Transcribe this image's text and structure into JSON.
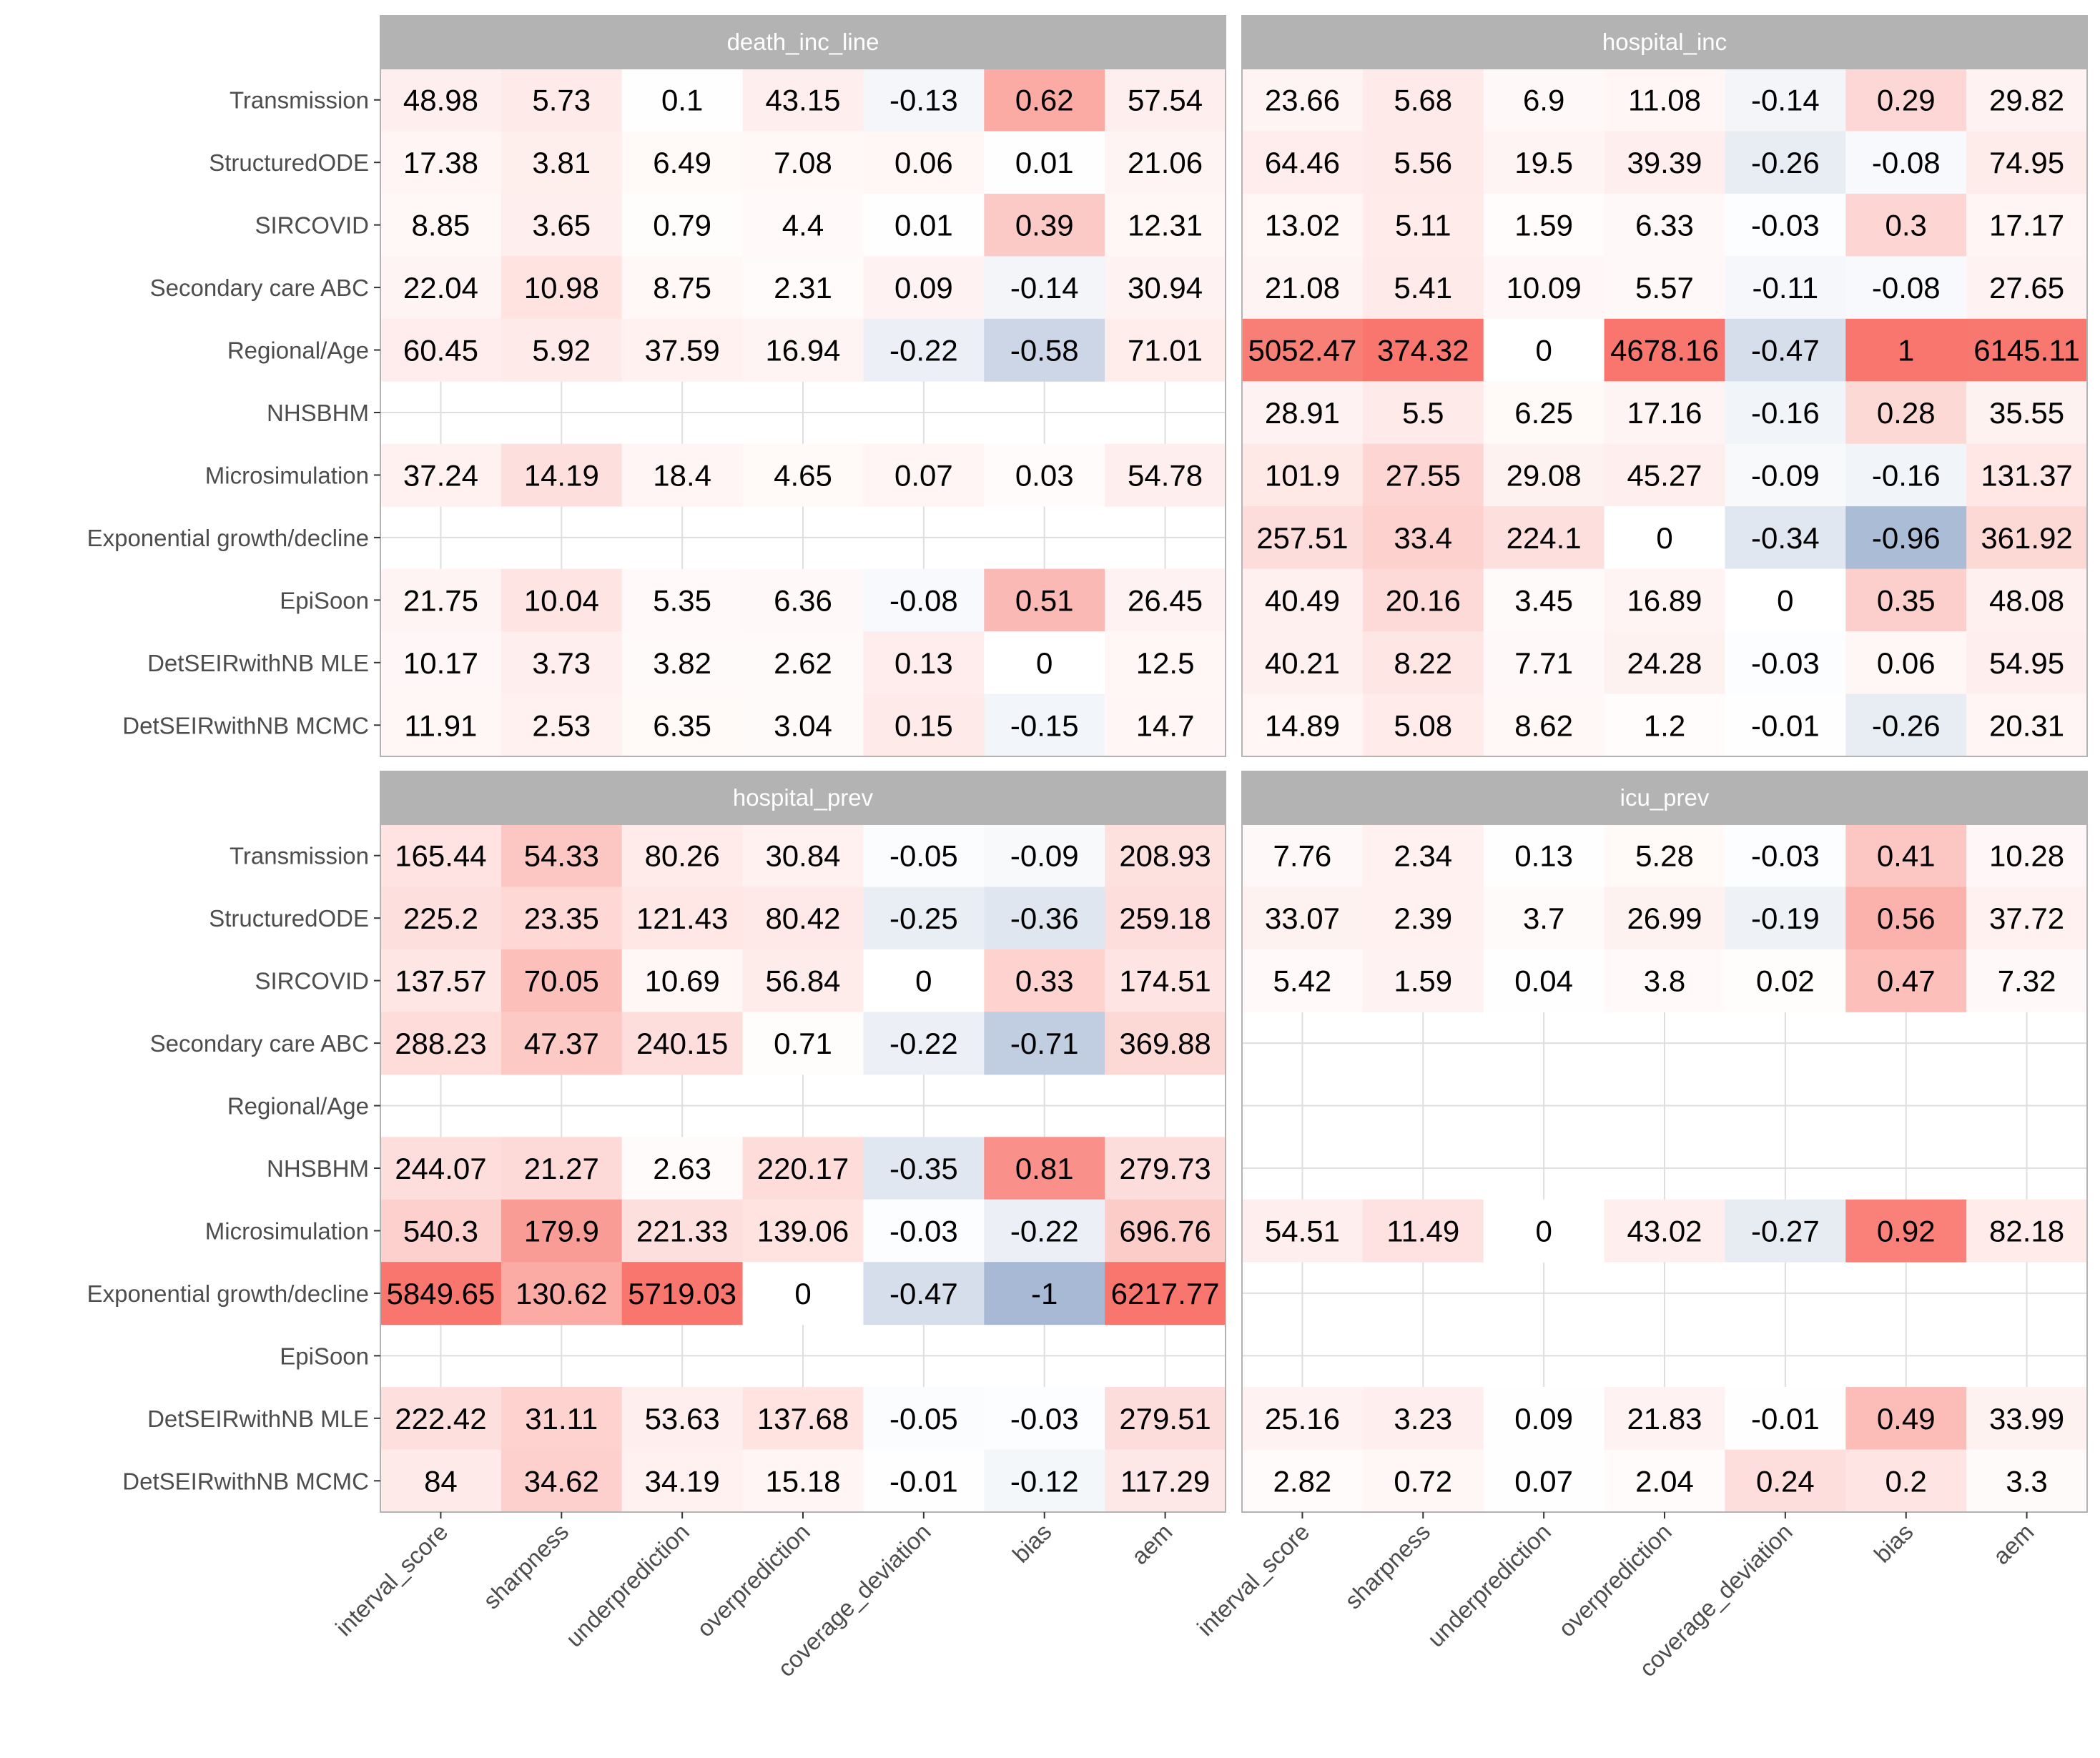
{
  "chart_data": {
    "type": "heatmap",
    "rows": [
      "Transmission",
      "StructuredODE",
      "SIRCOVID",
      "Secondary care ABC",
      "Regional/Age",
      "NHSBHM",
      "Microsimulation",
      "Exponential growth/decline",
      "EpiSoon",
      "DetSEIRwithNB MLE",
      "DetSEIRwithNB MCMC"
    ],
    "columns": [
      "interval_score",
      "sharpness",
      "underprediction",
      "overprediction",
      "coverage_deviation",
      "bias",
      "aem"
    ],
    "fill_colors": {
      "low": "#a7b9d4",
      "mid": "#ffffff",
      "high": "#f8766d",
      "missing": "#ffffff"
    },
    "panels": [
      {
        "title": "death_inc_line",
        "values": [
          [
            "48.98",
            "5.73",
            "0.1",
            "43.15",
            "-0.13",
            "0.62",
            "57.54"
          ],
          [
            "17.38",
            "3.81",
            "6.49",
            "7.08",
            "0.06",
            "0.01",
            "21.06"
          ],
          [
            "8.85",
            "3.65",
            "0.79",
            "4.4",
            "0.01",
            "0.39",
            "12.31"
          ],
          [
            "22.04",
            "10.98",
            "8.75",
            "2.31",
            "0.09",
            "-0.14",
            "30.94"
          ],
          [
            "60.45",
            "5.92",
            "37.59",
            "16.94",
            "-0.22",
            "-0.58",
            "71.01"
          ],
          [
            null,
            null,
            null,
            null,
            null,
            null,
            null
          ],
          [
            "37.24",
            "14.19",
            "18.4",
            "4.65",
            "0.07",
            "0.03",
            "54.78"
          ],
          [
            null,
            null,
            null,
            null,
            null,
            null,
            null
          ],
          [
            "21.75",
            "10.04",
            "5.35",
            "6.36",
            "-0.08",
            "0.51",
            "26.45"
          ],
          [
            "10.17",
            "3.73",
            "3.82",
            "2.62",
            "0.13",
            "0",
            "12.5"
          ],
          [
            "11.91",
            "2.53",
            "6.35",
            "3.04",
            "0.15",
            "-0.15",
            "14.7"
          ]
        ]
      },
      {
        "title": "hospital_inc",
        "values": [
          [
            "23.66",
            "5.68",
            "6.9",
            "11.08",
            "-0.14",
            "0.29",
            "29.82"
          ],
          [
            "64.46",
            "5.56",
            "19.5",
            "39.39",
            "-0.26",
            "-0.08",
            "74.95"
          ],
          [
            "13.02",
            "5.11",
            "1.59",
            "6.33",
            "-0.03",
            "0.3",
            "17.17"
          ],
          [
            "21.08",
            "5.41",
            "10.09",
            "5.57",
            "-0.11",
            "-0.08",
            "27.65"
          ],
          [
            "5052.47",
            "374.32",
            "0",
            "4678.16",
            "-0.47",
            "1",
            "6145.11"
          ],
          [
            "28.91",
            "5.5",
            "6.25",
            "17.16",
            "-0.16",
            "0.28",
            "35.55"
          ],
          [
            "101.9",
            "27.55",
            "29.08",
            "45.27",
            "-0.09",
            "-0.16",
            "131.37"
          ],
          [
            "257.51",
            "33.4",
            "224.1",
            "0",
            "-0.34",
            "-0.96",
            "361.92"
          ],
          [
            "40.49",
            "20.16",
            "3.45",
            "16.89",
            "0",
            "0.35",
            "48.08"
          ],
          [
            "40.21",
            "8.22",
            "7.71",
            "24.28",
            "-0.03",
            "0.06",
            "54.95"
          ],
          [
            "14.89",
            "5.08",
            "8.62",
            "1.2",
            "-0.01",
            "-0.26",
            "20.31"
          ]
        ]
      },
      {
        "title": "hospital_prev",
        "values": [
          [
            "165.44",
            "54.33",
            "80.26",
            "30.84",
            "-0.05",
            "-0.09",
            "208.93"
          ],
          [
            "225.2",
            "23.35",
            "121.43",
            "80.42",
            "-0.25",
            "-0.36",
            "259.18"
          ],
          [
            "137.57",
            "70.05",
            "10.69",
            "56.84",
            "0",
            "0.33",
            "174.51"
          ],
          [
            "288.23",
            "47.37",
            "240.15",
            "0.71",
            "-0.22",
            "-0.71",
            "369.88"
          ],
          [
            null,
            null,
            null,
            null,
            null,
            null,
            null
          ],
          [
            "244.07",
            "21.27",
            "2.63",
            "220.17",
            "-0.35",
            "0.81",
            "279.73"
          ],
          [
            "540.3",
            "179.9",
            "221.33",
            "139.06",
            "-0.03",
            "-0.22",
            "696.76"
          ],
          [
            "5849.65",
            "130.62",
            "5719.03",
            "0",
            "-0.47",
            "-1",
            "6217.77"
          ],
          [
            null,
            null,
            null,
            null,
            null,
            null,
            null
          ],
          [
            "222.42",
            "31.11",
            "53.63",
            "137.68",
            "-0.05",
            "-0.03",
            "279.51"
          ],
          [
            "84",
            "34.62",
            "34.19",
            "15.18",
            "-0.01",
            "-0.12",
            "117.29"
          ]
        ]
      },
      {
        "title": "icu_prev",
        "values": [
          [
            "7.76",
            "2.34",
            "0.13",
            "5.28",
            "-0.03",
            "0.41",
            "10.28"
          ],
          [
            "33.07",
            "2.39",
            "3.7",
            "26.99",
            "-0.19",
            "0.56",
            "37.72"
          ],
          [
            "5.42",
            "1.59",
            "0.04",
            "3.8",
            "0.02",
            "0.47",
            "7.32"
          ],
          [
            null,
            null,
            null,
            null,
            null,
            null,
            null
          ],
          [
            null,
            null,
            null,
            null,
            null,
            null,
            null
          ],
          [
            null,
            null,
            null,
            null,
            null,
            null,
            null
          ],
          [
            "54.51",
            "11.49",
            "0",
            "43.02",
            "-0.27",
            "0.92",
            "82.18"
          ],
          [
            null,
            null,
            null,
            null,
            null,
            null,
            null
          ],
          [
            null,
            null,
            null,
            null,
            null,
            null,
            null
          ],
          [
            "25.16",
            "3.23",
            "0.09",
            "21.83",
            "-0.01",
            "0.49",
            "33.99"
          ],
          [
            "2.82",
            "0.72",
            "0.07",
            "2.04",
            "0.24",
            "0.2",
            "3.3"
          ]
        ]
      }
    ]
  }
}
